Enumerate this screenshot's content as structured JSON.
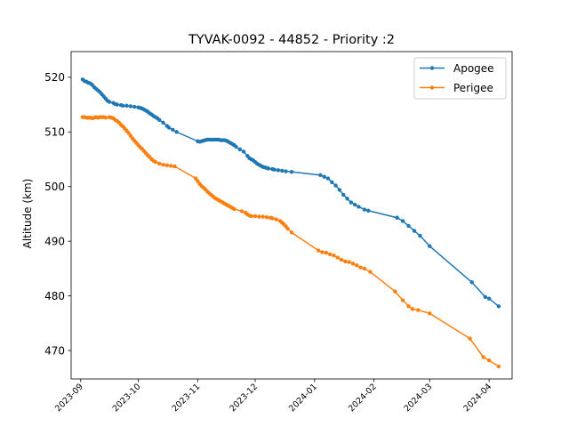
{
  "chart_data": {
    "type": "line",
    "title": "TYVAK-0092 - 44852 - Priority :2",
    "xlabel": "",
    "ylabel": "Altitude (km)",
    "xlim": [
      "2023-08-27",
      "2024-04-13"
    ],
    "ylim": [
      464.8,
      524.7
    ],
    "x_ticks": [
      "2023-09",
      "2023-10",
      "2023-11",
      "2023-12",
      "2024-01",
      "2024-02",
      "2024-03",
      "2024-04"
    ],
    "y_ticks": [
      470,
      480,
      490,
      500,
      510,
      520
    ],
    "grid": false,
    "legend_position": "top-right",
    "series": [
      {
        "name": "Apogee",
        "color": "#1f77b4",
        "points": [
          [
            "2023-09-02",
            519.6
          ],
          [
            "2023-09-03",
            519.3
          ],
          [
            "2023-09-04",
            519.2
          ],
          [
            "2023-09-05",
            519.0
          ],
          [
            "2023-09-06",
            518.9
          ],
          [
            "2023-09-07",
            518.6
          ],
          [
            "2023-09-08",
            518.2
          ],
          [
            "2023-09-09",
            517.9
          ],
          [
            "2023-09-10",
            517.6
          ],
          [
            "2023-09-11",
            517.3
          ],
          [
            "2023-09-12",
            516.9
          ],
          [
            "2023-09-13",
            516.5
          ],
          [
            "2023-09-14",
            516.1
          ],
          [
            "2023-09-15",
            515.7
          ],
          [
            "2023-09-16",
            515.5
          ],
          [
            "2023-09-18",
            515.3
          ],
          [
            "2023-09-19",
            515.1
          ],
          [
            "2023-09-20",
            515.0
          ],
          [
            "2023-09-22",
            514.9
          ],
          [
            "2023-09-23",
            514.8
          ],
          [
            "2023-09-25",
            514.8
          ],
          [
            "2023-09-27",
            514.7
          ],
          [
            "2023-09-29",
            514.6
          ],
          [
            "2023-10-01",
            514.5
          ],
          [
            "2023-10-02",
            514.4
          ],
          [
            "2023-10-03",
            514.3
          ],
          [
            "2023-10-04",
            514.1
          ],
          [
            "2023-10-05",
            513.9
          ],
          [
            "2023-10-06",
            513.7
          ],
          [
            "2023-10-07",
            513.4
          ],
          [
            "2023-10-08",
            513.2
          ],
          [
            "2023-10-09",
            512.9
          ],
          [
            "2023-10-10",
            512.7
          ],
          [
            "2023-10-11",
            512.5
          ],
          [
            "2023-10-12",
            512.2
          ],
          [
            "2023-10-14",
            511.7
          ],
          [
            "2023-10-16",
            511.1
          ],
          [
            "2023-10-17",
            510.8
          ],
          [
            "2023-10-19",
            510.4
          ],
          [
            "2023-10-21",
            510.0
          ],
          [
            "2023-11-01",
            508.3
          ],
          [
            "2023-11-02",
            508.2
          ],
          [
            "2023-11-03",
            508.3
          ],
          [
            "2023-11-04",
            508.4
          ],
          [
            "2023-11-05",
            508.5
          ],
          [
            "2023-11-06",
            508.6
          ],
          [
            "2023-11-07",
            508.6
          ],
          [
            "2023-11-08",
            508.6
          ],
          [
            "2023-11-09",
            508.6
          ],
          [
            "2023-11-10",
            508.6
          ],
          [
            "2023-11-11",
            508.6
          ],
          [
            "2023-11-12",
            508.6
          ],
          [
            "2023-11-13",
            508.5
          ],
          [
            "2023-11-14",
            508.5
          ],
          [
            "2023-11-15",
            508.5
          ],
          [
            "2023-11-16",
            508.4
          ],
          [
            "2023-11-17",
            508.2
          ],
          [
            "2023-11-18",
            508.0
          ],
          [
            "2023-11-19",
            507.8
          ],
          [
            "2023-11-20",
            507.6
          ],
          [
            "2023-11-21",
            507.3
          ],
          [
            "2023-11-23",
            506.8
          ],
          [
            "2023-11-25",
            506.4
          ],
          [
            "2023-11-27",
            505.6
          ],
          [
            "2023-11-28",
            505.2
          ],
          [
            "2023-11-29",
            505.0
          ],
          [
            "2023-11-30",
            504.8
          ],
          [
            "2023-12-01",
            504.5
          ],
          [
            "2023-12-02",
            504.2
          ],
          [
            "2023-12-03",
            504.0
          ],
          [
            "2023-12-04",
            503.8
          ],
          [
            "2023-12-05",
            503.6
          ],
          [
            "2023-12-06",
            503.5
          ],
          [
            "2023-12-07",
            503.4
          ],
          [
            "2023-12-08",
            503.3
          ],
          [
            "2023-12-10",
            503.2
          ],
          [
            "2023-12-11",
            503.1
          ],
          [
            "2023-12-13",
            503.0
          ],
          [
            "2023-12-15",
            502.9
          ],
          [
            "2023-12-17",
            502.8
          ],
          [
            "2023-12-20",
            502.7
          ],
          [
            "2024-01-04",
            502.1
          ],
          [
            "2024-01-06",
            501.8
          ],
          [
            "2024-01-08",
            501.5
          ],
          [
            "2024-01-10",
            500.8
          ],
          [
            "2024-01-12",
            500.2
          ],
          [
            "2024-01-14",
            499.4
          ],
          [
            "2024-01-16",
            498.5
          ],
          [
            "2024-01-18",
            497.8
          ],
          [
            "2024-01-20",
            497.1
          ],
          [
            "2024-01-22",
            496.7
          ],
          [
            "2024-01-24",
            496.3
          ],
          [
            "2024-01-27",
            495.8
          ],
          [
            "2024-01-29",
            495.6
          ],
          [
            "2024-02-13",
            494.3
          ],
          [
            "2024-02-16",
            493.7
          ],
          [
            "2024-02-19",
            492.8
          ],
          [
            "2024-02-22",
            491.9
          ],
          [
            "2024-02-25",
            491.0
          ],
          [
            "2024-03-01",
            489.1
          ],
          [
            "2024-03-23",
            482.5
          ],
          [
            "2024-03-30",
            479.8
          ],
          [
            "2024-04-01",
            479.5
          ],
          [
            "2024-04-06",
            478.1
          ]
        ]
      },
      {
        "name": "Perigee",
        "color": "#ff7f0e",
        "points": [
          [
            "2023-09-02",
            512.7
          ],
          [
            "2023-09-03",
            512.7
          ],
          [
            "2023-09-04",
            512.6
          ],
          [
            "2023-09-05",
            512.6
          ],
          [
            "2023-09-06",
            512.6
          ],
          [
            "2023-09-07",
            512.5
          ],
          [
            "2023-09-08",
            512.6
          ],
          [
            "2023-09-09",
            512.7
          ],
          [
            "2023-09-10",
            512.6
          ],
          [
            "2023-09-11",
            512.7
          ],
          [
            "2023-09-12",
            512.7
          ],
          [
            "2023-09-13",
            512.7
          ],
          [
            "2023-09-14",
            512.6
          ],
          [
            "2023-09-16",
            512.7
          ],
          [
            "2023-09-17",
            512.6
          ],
          [
            "2023-09-18",
            512.5
          ],
          [
            "2023-09-19",
            512.2
          ],
          [
            "2023-09-20",
            512.0
          ],
          [
            "2023-09-21",
            511.7
          ],
          [
            "2023-09-22",
            511.3
          ],
          [
            "2023-09-23",
            511.0
          ],
          [
            "2023-09-24",
            510.6
          ],
          [
            "2023-09-25",
            510.2
          ],
          [
            "2023-09-26",
            509.8
          ],
          [
            "2023-09-27",
            509.3
          ],
          [
            "2023-09-28",
            508.8
          ],
          [
            "2023-09-29",
            508.4
          ],
          [
            "2023-09-30",
            508.0
          ],
          [
            "2023-10-01",
            507.6
          ],
          [
            "2023-10-02",
            507.2
          ],
          [
            "2023-10-03",
            506.9
          ],
          [
            "2023-10-04",
            506.5
          ],
          [
            "2023-10-05",
            506.1
          ],
          [
            "2023-10-06",
            505.7
          ],
          [
            "2023-10-07",
            505.4
          ],
          [
            "2023-10-08",
            505.0
          ],
          [
            "2023-10-09",
            504.7
          ],
          [
            "2023-10-10",
            504.5
          ],
          [
            "2023-10-12",
            504.2
          ],
          [
            "2023-10-14",
            504.0
          ],
          [
            "2023-10-16",
            503.9
          ],
          [
            "2023-10-18",
            503.8
          ],
          [
            "2023-10-20",
            503.7
          ],
          [
            "2023-10-31",
            501.5
          ],
          [
            "2023-11-01",
            501.0
          ],
          [
            "2023-11-02",
            500.5
          ],
          [
            "2023-11-03",
            500.1
          ],
          [
            "2023-11-04",
            499.8
          ],
          [
            "2023-11-05",
            499.5
          ],
          [
            "2023-11-06",
            499.1
          ],
          [
            "2023-11-07",
            498.8
          ],
          [
            "2023-11-08",
            498.5
          ],
          [
            "2023-11-09",
            498.2
          ],
          [
            "2023-11-10",
            497.9
          ],
          [
            "2023-11-11",
            497.7
          ],
          [
            "2023-11-12",
            497.5
          ],
          [
            "2023-11-13",
            497.3
          ],
          [
            "2023-11-14",
            497.1
          ],
          [
            "2023-11-15",
            496.9
          ],
          [
            "2023-11-16",
            496.7
          ],
          [
            "2023-11-17",
            496.5
          ],
          [
            "2023-11-18",
            496.3
          ],
          [
            "2023-11-19",
            496.1
          ],
          [
            "2023-11-20",
            495.9
          ],
          [
            "2023-11-24",
            495.5
          ],
          [
            "2023-11-26",
            495.2
          ],
          [
            "2023-11-27",
            494.9
          ],
          [
            "2023-11-28",
            494.7
          ],
          [
            "2023-11-29",
            494.6
          ],
          [
            "2023-12-01",
            494.6
          ],
          [
            "2023-12-03",
            494.5
          ],
          [
            "2023-12-05",
            494.5
          ],
          [
            "2023-12-07",
            494.4
          ],
          [
            "2023-12-09",
            494.3
          ],
          [
            "2023-12-10",
            494.2
          ],
          [
            "2023-12-12",
            494.0
          ],
          [
            "2023-12-14",
            493.7
          ],
          [
            "2023-12-15",
            493.4
          ],
          [
            "2023-12-16",
            493.1
          ],
          [
            "2023-12-17",
            492.7
          ],
          [
            "2023-12-18",
            492.3
          ],
          [
            "2023-12-20",
            491.6
          ],
          [
            "2024-01-03",
            488.3
          ],
          [
            "2024-01-05",
            488.0
          ],
          [
            "2024-01-07",
            487.9
          ],
          [
            "2024-01-09",
            487.6
          ],
          [
            "2024-01-11",
            487.4
          ],
          [
            "2024-01-13",
            487.0
          ],
          [
            "2024-01-15",
            486.6
          ],
          [
            "2024-01-17",
            486.3
          ],
          [
            "2024-01-19",
            486.2
          ],
          [
            "2024-01-21",
            485.9
          ],
          [
            "2024-01-23",
            485.6
          ],
          [
            "2024-01-25",
            485.2
          ],
          [
            "2024-01-27",
            485.0
          ],
          [
            "2024-01-30",
            484.4
          ],
          [
            "2024-02-12",
            480.8
          ],
          [
            "2024-02-16",
            479.2
          ],
          [
            "2024-02-19",
            478.1
          ],
          [
            "2024-02-21",
            477.6
          ],
          [
            "2024-02-24",
            477.4
          ],
          [
            "2024-03-01",
            476.8
          ],
          [
            "2024-03-22",
            472.2
          ],
          [
            "2024-03-29",
            468.8
          ],
          [
            "2024-04-01",
            468.2
          ],
          [
            "2024-04-06",
            467.1
          ]
        ]
      }
    ]
  }
}
